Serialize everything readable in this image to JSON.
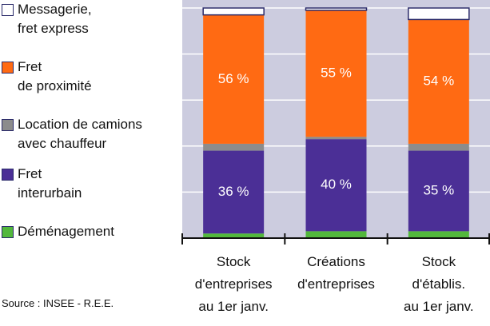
{
  "chart_data": {
    "type": "stacked_bar",
    "categories": [
      "Stock\nd'entreprises\nau 1er janv.",
      "Créations\nd'entreprises",
      "Stock\nd'établis.\nau 1er janv."
    ],
    "series": [
      {
        "name": "Messagerie,\nfret express",
        "color": "#ffffff",
        "values": [
          3,
          1,
          5
        ]
      },
      {
        "name": "Fret\nde proximité",
        "color": "#ff6a13",
        "values": [
          56,
          55,
          54
        ],
        "value_labels": [
          "56 %",
          "55 %",
          "54 %"
        ]
      },
      {
        "name": "Location de camions\navec chauffeur",
        "color": "#8c8c8c",
        "values": [
          3,
          1,
          3
        ]
      },
      {
        "name": "Fret\ninterurbain",
        "color": "#4b2f96",
        "values": [
          36,
          40,
          35
        ],
        "value_labels": [
          "36 %",
          "40 %",
          "35 %"
        ]
      },
      {
        "name": "Déménagement",
        "color": "#52b83c",
        "values": [
          2,
          3,
          3
        ]
      }
    ],
    "ylim": [
      0,
      100
    ],
    "yticks": [
      0,
      20,
      40,
      60,
      80,
      100
    ],
    "grid": true,
    "source": "Source : INSEE - R.E.E."
  }
}
